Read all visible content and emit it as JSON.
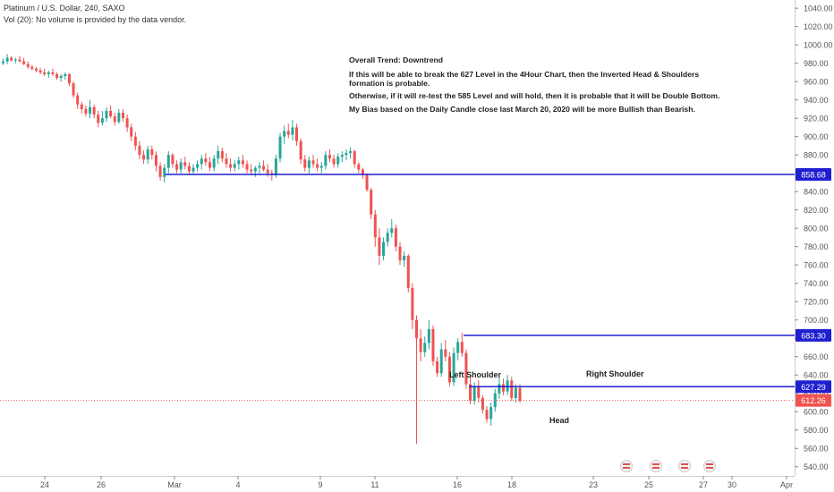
{
  "header": {
    "title": "Platinum / U.S. Dollar, 240, SAXO",
    "volume_note": "Vol (20): No volume is provided by the data vendor."
  },
  "annotation": [
    "Overall Trend: Downtrend",
    "If this will be able to break the 627 Level in the 4Hour Chart, then the Inverted Head & Shoulders",
    "formation is probable.",
    "Otherwise, if it will re-test the 585 Level and will hold, then it is probable that it will be Double Bottom.",
    "My Bias based on the Daily Candle close last March 20, 2020 will be more Bullish than Bearish."
  ],
  "pattern_labels": {
    "left": "Left Shoulder",
    "head": "Head",
    "right": "Right Shoulder"
  },
  "colors": {
    "up": "#26a69a",
    "down": "#ef5350",
    "level_line": "#1f1fd1",
    "price_line": "#ef5350",
    "axis_text": "#555555"
  },
  "chart_data": {
    "type": "candlestick",
    "symbol": "Platinum / U.S. Dollar",
    "interval": "240",
    "ylim": [
      530,
      1045
    ],
    "y_ticks": [
      540,
      560,
      580,
      600,
      620,
      640,
      660,
      680,
      700,
      720,
      740,
      760,
      780,
      800,
      820,
      840,
      860,
      880,
      900,
      920,
      940,
      960,
      980,
      1000,
      1020,
      1040
    ],
    "x_ticks": [
      {
        "label": "24",
        "pos": 50
      },
      {
        "label": "26",
        "pos": 113
      },
      {
        "label": "Mar",
        "pos": 195
      },
      {
        "label": "4",
        "pos": 266
      },
      {
        "label": "9",
        "pos": 358
      },
      {
        "label": "11",
        "pos": 419
      },
      {
        "label": "16",
        "pos": 511
      },
      {
        "label": "18",
        "pos": 572
      },
      {
        "label": "23",
        "pos": 663
      },
      {
        "label": "25",
        "pos": 725
      },
      {
        "label": "27",
        "pos": 786
      },
      {
        "label": "30",
        "pos": 818
      },
      {
        "label": "Apr",
        "pos": 879
      }
    ],
    "levels": [
      {
        "label": "858.68",
        "value": 858.68,
        "x_start": 185
      },
      {
        "label": "683.30",
        "value": 683.3,
        "x_start": 518
      },
      {
        "label": "627.29",
        "value": 627.29,
        "x_start": 524
      }
    ],
    "last_price": {
      "label": "612.26",
      "value": 612.26
    },
    "candles": [
      [
        980,
        985,
        978,
        982
      ],
      [
        982,
        990,
        979,
        986
      ],
      [
        986,
        988,
        982,
        983
      ],
      [
        983,
        986,
        980,
        984
      ],
      [
        984,
        988,
        981,
        982
      ],
      [
        982,
        986,
        978,
        979
      ],
      [
        979,
        982,
        974,
        976
      ],
      [
        976,
        978,
        972,
        974
      ],
      [
        974,
        976,
        970,
        972
      ],
      [
        972,
        975,
        968,
        970
      ],
      [
        970,
        974,
        966,
        968
      ],
      [
        968,
        972,
        964,
        970
      ],
      [
        970,
        974,
        966,
        968
      ],
      [
        968,
        970,
        962,
        964
      ],
      [
        964,
        968,
        960,
        966
      ],
      [
        966,
        970,
        962,
        968
      ],
      [
        968,
        969,
        955,
        958
      ],
      [
        958,
        960,
        942,
        945
      ],
      [
        945,
        948,
        930,
        935
      ],
      [
        935,
        938,
        925,
        930
      ],
      [
        930,
        934,
        922,
        925
      ],
      [
        925,
        940,
        920,
        932
      ],
      [
        932,
        935,
        920,
        924
      ],
      [
        924,
        928,
        910,
        915
      ],
      [
        915,
        928,
        912,
        920
      ],
      [
        920,
        932,
        916,
        928
      ],
      [
        928,
        934,
        920,
        922
      ],
      [
        922,
        926,
        912,
        916
      ],
      [
        916,
        930,
        914,
        926
      ],
      [
        926,
        930,
        916,
        920
      ],
      [
        920,
        924,
        905,
        910
      ],
      [
        910,
        914,
        895,
        900
      ],
      [
        900,
        905,
        885,
        890
      ],
      [
        890,
        895,
        875,
        880
      ],
      [
        880,
        885,
        870,
        875
      ],
      [
        875,
        890,
        870,
        886
      ],
      [
        886,
        890,
        875,
        880
      ],
      [
        880,
        884,
        862,
        868
      ],
      [
        868,
        872,
        852,
        856
      ],
      [
        856,
        870,
        850,
        866
      ],
      [
        866,
        884,
        860,
        880
      ],
      [
        880,
        882,
        866,
        870
      ],
      [
        870,
        874,
        860,
        864
      ],
      [
        864,
        876,
        860,
        872
      ],
      [
        872,
        878,
        864,
        868
      ],
      [
        868,
        872,
        858,
        862
      ],
      [
        862,
        870,
        858,
        866
      ],
      [
        866,
        874,
        862,
        870
      ],
      [
        870,
        880,
        864,
        876
      ],
      [
        876,
        882,
        868,
        872
      ],
      [
        872,
        878,
        862,
        866
      ],
      [
        866,
        880,
        862,
        876
      ],
      [
        876,
        890,
        870,
        884
      ],
      [
        884,
        888,
        872,
        876
      ],
      [
        876,
        882,
        866,
        870
      ],
      [
        870,
        876,
        862,
        866
      ],
      [
        866,
        874,
        862,
        870
      ],
      [
        870,
        878,
        864,
        874
      ],
      [
        874,
        880,
        866,
        870
      ],
      [
        870,
        874,
        860,
        864
      ],
      [
        864,
        870,
        858,
        862
      ],
      [
        862,
        868,
        856,
        866
      ],
      [
        866,
        872,
        860,
        868
      ],
      [
        868,
        874,
        862,
        864
      ],
      [
        864,
        870,
        856,
        860
      ],
      [
        860,
        864,
        852,
        858
      ],
      [
        858,
        880,
        855,
        876
      ],
      [
        876,
        904,
        872,
        900
      ],
      [
        900,
        912,
        892,
        906
      ],
      [
        906,
        914,
        898,
        902
      ],
      [
        902,
        918,
        896,
        910
      ],
      [
        910,
        914,
        890,
        895
      ],
      [
        895,
        898,
        870,
        875
      ],
      [
        875,
        880,
        862,
        866
      ],
      [
        866,
        878,
        860,
        874
      ],
      [
        874,
        880,
        866,
        870
      ],
      [
        870,
        876,
        862,
        866
      ],
      [
        866,
        872,
        860,
        868
      ],
      [
        868,
        884,
        864,
        880
      ],
      [
        880,
        886,
        872,
        876
      ],
      [
        876,
        880,
        866,
        870
      ],
      [
        870,
        882,
        866,
        878
      ],
      [
        878,
        884,
        872,
        880
      ],
      [
        880,
        886,
        874,
        882
      ],
      [
        882,
        888,
        876,
        884
      ],
      [
        884,
        886,
        866,
        870
      ],
      [
        870,
        872,
        860,
        864
      ],
      [
        864,
        866,
        854,
        858
      ],
      [
        858,
        860,
        840,
        842
      ],
      [
        842,
        844,
        810,
        815
      ],
      [
        815,
        820,
        780,
        790
      ],
      [
        790,
        800,
        760,
        770
      ],
      [
        770,
        790,
        765,
        785
      ],
      [
        785,
        800,
        780,
        795
      ],
      [
        795,
        810,
        790,
        800
      ],
      [
        800,
        804,
        775,
        780
      ],
      [
        780,
        785,
        760,
        765
      ],
      [
        765,
        775,
        758,
        770
      ],
      [
        770,
        772,
        730,
        735
      ],
      [
        735,
        740,
        690,
        700
      ],
      [
        700,
        705,
        565,
        680
      ],
      [
        680,
        690,
        655,
        665
      ],
      [
        665,
        682,
        660,
        675
      ],
      [
        675,
        700,
        668,
        690
      ],
      [
        690,
        694,
        650,
        655
      ],
      [
        655,
        660,
        638,
        642
      ],
      [
        642,
        675,
        638,
        668
      ],
      [
        668,
        678,
        655,
        660
      ],
      [
        660,
        665,
        628,
        632
      ],
      [
        632,
        670,
        628,
        664
      ],
      [
        664,
        680,
        656,
        676
      ],
      [
        676,
        686,
        660,
        664
      ],
      [
        664,
        668,
        625,
        630
      ],
      [
        630,
        640,
        608,
        612
      ],
      [
        612,
        632,
        608,
        628
      ],
      [
        628,
        634,
        610,
        615
      ],
      [
        615,
        618,
        598,
        602
      ],
      [
        602,
        606,
        588,
        592
      ],
      [
        592,
        610,
        585,
        605
      ],
      [
        605,
        625,
        600,
        620
      ],
      [
        620,
        638,
        614,
        630
      ],
      [
        630,
        636,
        618,
        622
      ],
      [
        622,
        640,
        618,
        634
      ],
      [
        634,
        638,
        612,
        615
      ],
      [
        615,
        630,
        610,
        626
      ],
      [
        626,
        630,
        610,
        612
      ]
    ]
  }
}
